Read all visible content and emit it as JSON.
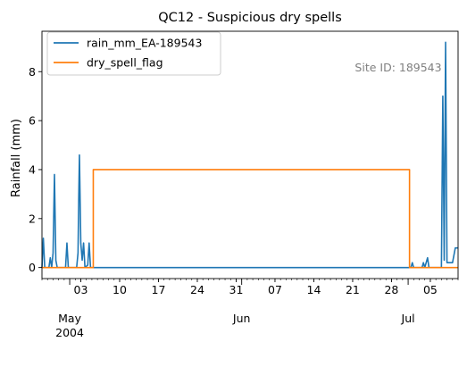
{
  "chart_data": {
    "type": "line",
    "title": "QC12 - Suspicious dry spells",
    "xlabel": "",
    "ylabel": "Rainfall (mm)",
    "x_range": [
      "2004-04-26",
      "2004-07-10"
    ],
    "ylim": [
      -0.45,
      9.65
    ],
    "y_ticks": [
      0,
      2,
      4,
      6,
      8
    ],
    "x_ticks": [
      {
        "date": "2004-05-01",
        "label": "",
        "major": true
      },
      {
        "date": "2004-05-03",
        "label": "03",
        "major": false
      },
      {
        "date": "2004-05-10",
        "label": "10",
        "major": false
      },
      {
        "date": "2004-05-17",
        "label": "17",
        "major": false
      },
      {
        "date": "2004-05-24",
        "label": "24",
        "major": false
      },
      {
        "date": "2004-05-31",
        "label": "31",
        "major": false
      },
      {
        "date": "2004-06-01",
        "label": "",
        "major": true
      },
      {
        "date": "2004-06-07",
        "label": "07",
        "major": false
      },
      {
        "date": "2004-06-14",
        "label": "14",
        "major": false
      },
      {
        "date": "2004-06-21",
        "label": "21",
        "major": false
      },
      {
        "date": "2004-06-28",
        "label": "28",
        "major": false
      },
      {
        "date": "2004-07-01",
        "label": "",
        "major": true
      },
      {
        "date": "2004-07-05",
        "label": "05",
        "major": false
      }
    ],
    "month_labels": [
      {
        "date": "2004-05-01",
        "label": "May",
        "year": "2004"
      },
      {
        "date": "2004-06-01",
        "label": "Jun",
        "year": ""
      },
      {
        "date": "2004-07-01",
        "label": "Jul",
        "year": ""
      }
    ],
    "annotation": "Site ID: 189543",
    "legend_position": "top-left",
    "grid": false,
    "series": [
      {
        "name": "rain_mm_EA-189543",
        "color": "#1f77b4",
        "points": [
          [
            "2004-04-26 00:00",
            0.0
          ],
          [
            "2004-04-26 06:00",
            1.2
          ],
          [
            "2004-04-26 12:00",
            0.0
          ],
          [
            "2004-04-27 06:00",
            0.0
          ],
          [
            "2004-04-27 12:00",
            0.4
          ],
          [
            "2004-04-27 18:00",
            0.0
          ],
          [
            "2004-04-28 00:00",
            0.6
          ],
          [
            "2004-04-28 06:00",
            3.8
          ],
          [
            "2004-04-28 12:00",
            0.3
          ],
          [
            "2004-04-28 18:00",
            0.0
          ],
          [
            "2004-04-30 06:00",
            0.0
          ],
          [
            "2004-04-30 12:00",
            1.0
          ],
          [
            "2004-04-30 18:00",
            0.0
          ],
          [
            "2004-05-02 06:00",
            0.0
          ],
          [
            "2004-05-02 12:00",
            0.6
          ],
          [
            "2004-05-02 15:00",
            2.8
          ],
          [
            "2004-05-02 18:00",
            4.6
          ],
          [
            "2004-05-03 00:00",
            1.0
          ],
          [
            "2004-05-03 06:00",
            0.3
          ],
          [
            "2004-05-03 12:00",
            1.0
          ],
          [
            "2004-05-03 18:00",
            0.0
          ],
          [
            "2004-05-04 06:00",
            0.1
          ],
          [
            "2004-05-04 12:00",
            1.0
          ],
          [
            "2004-05-04 18:00",
            0.0
          ],
          [
            "2004-07-01 12:00",
            0.0
          ],
          [
            "2004-07-01 18:00",
            0.2
          ],
          [
            "2004-07-02 00:00",
            0.0
          ],
          [
            "2004-07-03 12:00",
            0.0
          ],
          [
            "2004-07-03 18:00",
            0.2
          ],
          [
            "2004-07-04 00:00",
            0.0
          ],
          [
            "2004-07-04 12:00",
            0.4
          ],
          [
            "2004-07-04 18:00",
            0.0
          ],
          [
            "2004-07-07 00:00",
            0.0
          ],
          [
            "2004-07-07 06:00",
            7.0
          ],
          [
            "2004-07-07 12:00",
            0.3
          ],
          [
            "2004-07-07 18:00",
            9.2
          ],
          [
            "2004-07-08 00:00",
            0.2
          ],
          [
            "2004-07-08 12:00",
            0.2
          ],
          [
            "2004-07-09 00:00",
            0.2
          ],
          [
            "2004-07-09 12:00",
            0.8
          ],
          [
            "2004-07-10 00:00",
            0.8
          ]
        ]
      },
      {
        "name": "dry_spell_flag",
        "color": "#ff7f0e",
        "points": [
          [
            "2004-04-26 00:00",
            0
          ],
          [
            "2004-05-05 06:00",
            0
          ],
          [
            "2004-05-05 06:00",
            4
          ],
          [
            "2004-07-01 06:00",
            4
          ],
          [
            "2004-07-01 06:00",
            0
          ],
          [
            "2004-07-10 00:00",
            0
          ]
        ]
      }
    ]
  }
}
